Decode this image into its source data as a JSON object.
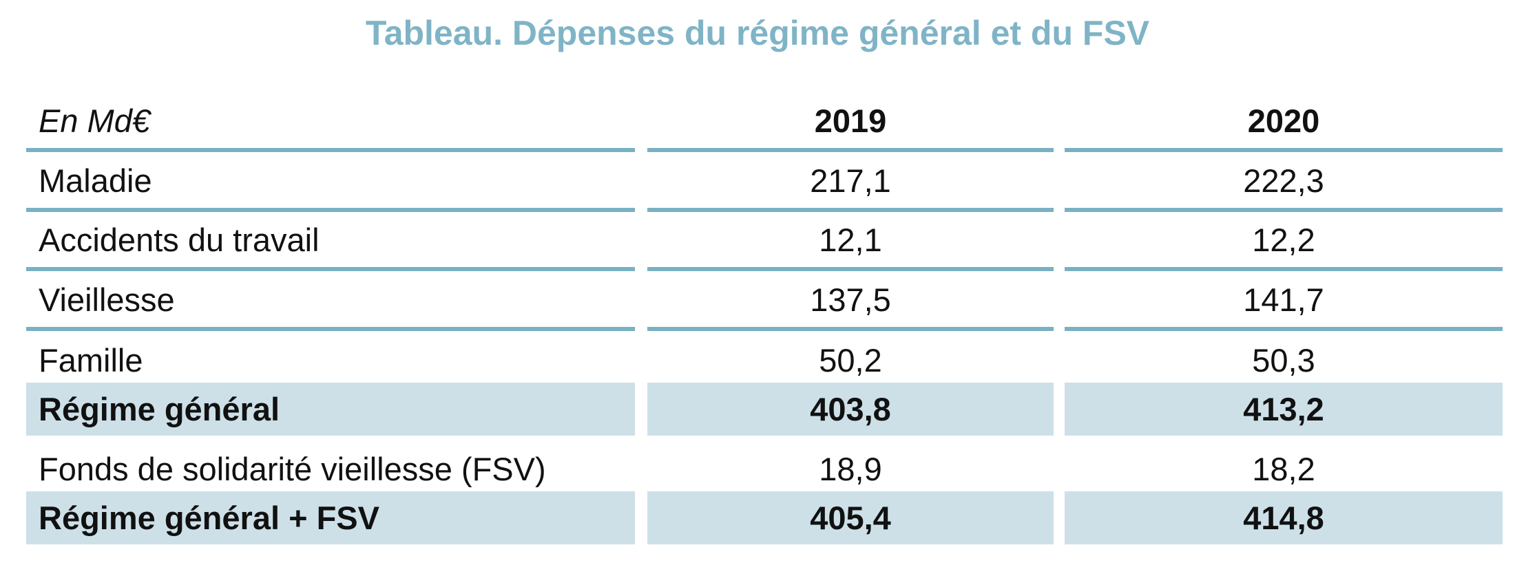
{
  "title": "Tableau. Dépenses du régime général et du FSV",
  "header": {
    "unit": "En Md€",
    "years": [
      "2019",
      "2020"
    ]
  },
  "rows": [
    {
      "label": "Maladie",
      "v2019": "217,1",
      "v2020": "222,3"
    },
    {
      "label": "Accidents du travail",
      "v2019": "12,1",
      "v2020": "12,2"
    },
    {
      "label": "Vieillesse",
      "v2019": "137,5",
      "v2020": "141,7"
    },
    {
      "label": "Famille",
      "v2019": "50,2",
      "v2020": "50,3"
    },
    {
      "label": "Régime général",
      "v2019": "403,8",
      "v2020": "413,2"
    },
    {
      "label": "Fonds de solidarité vieillesse (FSV)",
      "v2019": "18,9",
      "v2020": "18,2"
    },
    {
      "label": "Régime général + FSV",
      "v2019": "405,4",
      "v2020": "414,8"
    }
  ],
  "colors": {
    "title": "#7fb4c6",
    "rule": "#79b1c3",
    "total_shade": "#cde0e8"
  }
}
